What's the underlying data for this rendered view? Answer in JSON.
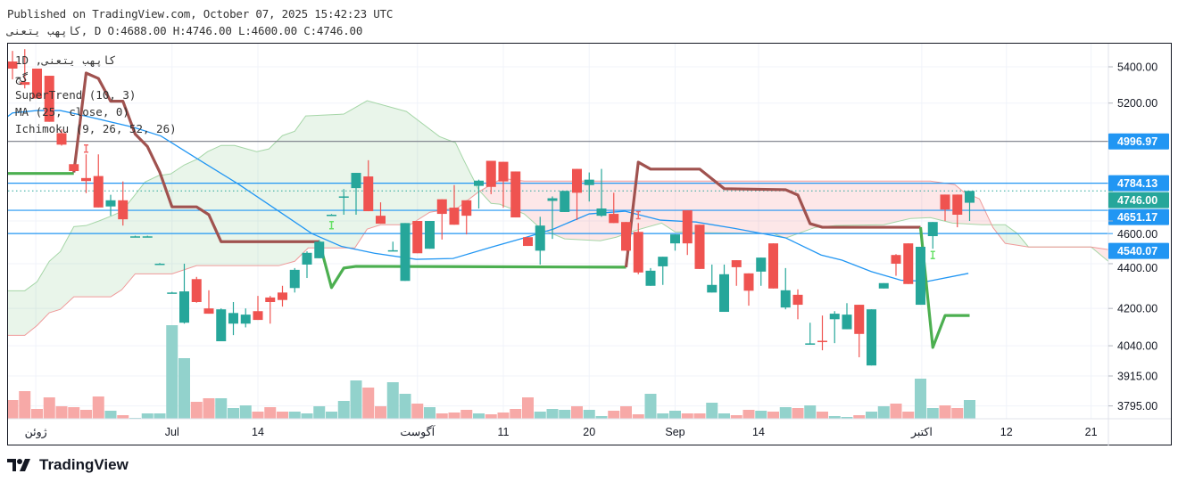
{
  "header": {
    "published": "Published on TradingView.com, October 07, 2025 15:42:23 UTC",
    "ohlc_line": "کاپهب یتعنی, D O:4688.00 H:4746.00 L:4600.00 C:4746.00"
  },
  "legend": {
    "symbol": "کاپهب یتعنی, 1D",
    "exchange": "گج",
    "supertrend": "SuperTrend (10, 3)",
    "ma": "MA (25, close, 0)",
    "ichimoku": "Ichimoku (9, 26, 52, 26)"
  },
  "footer": {
    "brand": "TradingView"
  },
  "colors": {
    "up": "#26a69a",
    "down": "#ef5350",
    "vol_up": "#92d2cc",
    "vol_down": "#f7a9a7",
    "ma": "#2196f3",
    "st_up": "#4caf50",
    "st_down": "#a0524f",
    "level": "#2196f3",
    "span_a": "#a5d6a7",
    "span_b": "#ef9a9a"
  },
  "chart_data": {
    "type": "candlestick",
    "title": "کاپهب یتعنی, 1D",
    "y_scale": "log",
    "ylim": [
      3760,
      5520
    ],
    "y_ticks": [
      {
        "v": 5400,
        "l": "5400.00"
      },
      {
        "v": 5200,
        "l": "5200.00"
      },
      {
        "v": 4600,
        "l": "4600.00"
      },
      {
        "v": 4400,
        "l": "4400.00"
      },
      {
        "v": 4200,
        "l": "4200.00"
      },
      {
        "v": 4040,
        "l": "4040.00"
      },
      {
        "v": 3915,
        "l": "3915.00"
      },
      {
        "v": 3795,
        "l": "3795.00"
      }
    ],
    "x_ticks": [
      {
        "i": 1.9,
        "l": "ژوئن"
      },
      {
        "i": 13.0,
        "l": "Jul"
      },
      {
        "i": 20.0,
        "l": "14"
      },
      {
        "i": 33.0,
        "l": "آگوست"
      },
      {
        "i": 40.0,
        "l": "11"
      },
      {
        "i": 47.0,
        "l": "20"
      },
      {
        "i": 54.0,
        "l": "Sep"
      },
      {
        "i": 60.8,
        "l": "14"
      },
      {
        "i": 74.1,
        "l": "اکتبر"
      },
      {
        "i": 81.0,
        "l": "12"
      },
      {
        "i": 87.9,
        "l": "21"
      }
    ],
    "levels": [
      {
        "price": 4996.97,
        "label": "4996.97",
        "color": "#787b86",
        "label_color": "#2196f3"
      },
      {
        "price": 4784.13,
        "label": "4784.13",
        "color": "#2196f3",
        "label_color": "#2196f3"
      },
      {
        "price": 4651.17,
        "label": "4651.17",
        "color": "#2196f3",
        "label_color": "#2196f3"
      },
      {
        "price": 4540.07,
        "label": "4540.07",
        "color": "#2196f3",
        "label_color": "#2196f3"
      }
    ],
    "last_price": {
      "price": 4746.0,
      "label": "4746.00",
      "color": "#26a69a"
    },
    "candles": [
      [
        5430,
        5490,
        5330,
        5390
      ],
      [
        5315,
        5500,
        5280,
        5300
      ],
      [
        5390,
        5390,
        5225,
        5225
      ],
      [
        5350,
        5350,
        5100,
        5100
      ],
      [
        5040,
        5060,
        4975,
        4980
      ],
      [
        4880,
        4880,
        4845,
        4845
      ],
      [
        4810,
        4930,
        4735,
        4795
      ],
      [
        4820,
        4930,
        4665,
        4665
      ],
      [
        4670,
        4727,
        4625,
        4700
      ],
      [
        4700,
        4793,
        4578,
        4608
      ],
      [
        4527,
        4530,
        4525,
        4527
      ],
      [
        4527,
        4530,
        4525,
        4527
      ],
      [
        4400,
        4403,
        4397,
        4400
      ],
      [
        4270,
        4273,
        4267,
        4270
      ],
      [
        4138,
        4400,
        4134,
        4275
      ],
      [
        4330,
        4340,
        4225,
        4228
      ],
      [
        4200,
        4280,
        4177,
        4177
      ],
      [
        4059,
        4200,
        4059,
        4196
      ],
      [
        4134,
        4228,
        4085,
        4180
      ],
      [
        4134,
        4200,
        4118,
        4173
      ],
      [
        4188,
        4255,
        4150,
        4150
      ],
      [
        4248,
        4255,
        4134,
        4228
      ],
      [
        4270,
        4300,
        4208,
        4237
      ],
      [
        4290,
        4380,
        4270,
        4372
      ],
      [
        4396,
        4457,
        4335,
        4450
      ],
      [
        4425,
        4510,
        4425,
        4502
      ],
      [
        4630,
        4633,
        4627,
        4630
      ],
      [
        4715,
        4755,
        4630,
        4719
      ],
      [
        4760,
        4836,
        4630,
        4836
      ],
      [
        4818,
        4900,
        4647,
        4647
      ],
      [
        4625,
        4690,
        4587,
        4587
      ],
      [
        4458,
        4502,
        4458,
        4462
      ],
      [
        4322,
        4590,
        4322,
        4590
      ],
      [
        4600,
        4600,
        4448,
        4448
      ],
      [
        4469,
        4600,
        4469,
        4600
      ],
      [
        4705,
        4705,
        4512,
        4634
      ],
      [
        4664,
        4775,
        4582,
        4582
      ],
      [
        4700,
        4700,
        4536,
        4625
      ],
      [
        4771,
        4802,
        4660,
        4797
      ],
      [
        4897,
        4897,
        4730,
        4766
      ],
      [
        4892,
        4892,
        4664,
        4793
      ],
      [
        4843,
        4843,
        4617,
        4617
      ],
      [
        4523,
        4523,
        4482,
        4482
      ],
      [
        4460,
        4620,
        4396,
        4578
      ],
      [
        4697,
        4719,
        4515,
        4710
      ],
      [
        4643,
        4746,
        4643,
        4746
      ],
      [
        4856,
        4856,
        4604,
        4737
      ],
      [
        4775,
        4838,
        4694,
        4802
      ],
      [
        4625,
        4856,
        4620,
        4660
      ],
      [
        4634,
        4737,
        4590,
        4590
      ],
      [
        4595,
        4595,
        4460,
        4460
      ],
      [
        4548,
        4590,
        4352,
        4360
      ],
      [
        4300,
        4380,
        4300,
        4368
      ],
      [
        4388,
        4432,
        4304,
        4432
      ],
      [
        4494,
        4536,
        4460,
        4536
      ],
      [
        4651,
        4651,
        4440,
        4494
      ],
      [
        4582,
        4582,
        4376,
        4376
      ],
      [
        4270,
        4396,
        4270,
        4304
      ],
      [
        4185,
        4396,
        4185,
        4352
      ],
      [
        4416,
        4416,
        4300,
        4384
      ],
      [
        4356,
        4356,
        4212,
        4278
      ],
      [
        4364,
        4428,
        4300,
        4428
      ],
      [
        4494,
        4494,
        4288,
        4288
      ],
      [
        4204,
        4380,
        4196,
        4280
      ],
      [
        4260,
        4284,
        4153,
        4216
      ],
      [
        4046,
        4138,
        4046,
        4050
      ],
      [
        4061,
        4169,
        4021,
        4057
      ],
      [
        4153,
        4188,
        4051,
        4177
      ],
      [
        4110,
        4223,
        4110,
        4173
      ],
      [
        4216,
        4216,
        3992,
        4090
      ],
      [
        3958,
        4196,
        3958,
        4196
      ],
      [
        4288,
        4312,
        4288,
        4312
      ],
      [
        4440,
        4444,
        4345,
        4400
      ],
      [
        4494,
        4494,
        4308,
        4308
      ],
      [
        4216,
        4478,
        4216,
        4478
      ],
      [
        4528,
        4595,
        4469,
        4595
      ],
      [
        4728,
        4728,
        4600,
        4655
      ],
      [
        4728,
        4728,
        4570,
        4630
      ],
      [
        4688,
        4746,
        4600,
        4746
      ]
    ],
    "volume_relative": [
      21,
      31,
      11,
      24,
      14,
      13,
      10,
      25,
      9,
      4,
      1,
      6,
      6,
      105,
      68,
      19,
      23,
      23,
      12,
      15,
      8,
      13,
      8,
      8,
      6,
      14,
      8,
      20,
      43,
      35,
      14,
      41,
      28,
      17,
      13,
      6,
      7,
      10,
      6,
      5,
      7,
      11,
      24,
      8,
      11,
      10,
      14,
      10,
      3,
      9,
      14,
      5,
      28,
      6,
      9,
      6,
      6,
      18,
      6,
      4,
      10,
      9,
      8,
      13,
      12,
      15,
      8,
      3,
      2,
      4,
      8,
      14,
      17,
      8,
      45,
      12,
      15,
      12,
      21
    ],
    "supertrend": [
      {
        "trend": "up",
        "points": [
          [
            -1,
            4833
          ],
          [
            5,
            4833
          ]
        ]
      },
      {
        "trend": "down",
        "points": [
          [
            5,
            4838
          ],
          [
            6,
            5365
          ],
          [
            7,
            5335
          ],
          [
            8,
            5210
          ],
          [
            9,
            5210
          ],
          [
            10,
            5035
          ],
          [
            11,
            4970
          ],
          [
            12,
            4840
          ],
          [
            13,
            4668
          ],
          [
            15,
            4668
          ],
          [
            16,
            4630
          ],
          [
            17,
            4502
          ],
          [
            25,
            4502
          ]
        ]
      },
      {
        "trend": "up",
        "points": [
          [
            25,
            4502
          ],
          [
            26,
            4292
          ],
          [
            27,
            4380
          ],
          [
            28,
            4388
          ],
          [
            50,
            4384
          ]
        ]
      },
      {
        "trend": "down",
        "points": [
          [
            50,
            4384
          ],
          [
            51,
            4890
          ],
          [
            52,
            4855
          ],
          [
            56,
            4855
          ],
          [
            58,
            4757
          ],
          [
            63,
            4752
          ],
          [
            64,
            4726
          ],
          [
            65,
            4587
          ],
          [
            66,
            4570
          ],
          [
            74,
            4570
          ]
        ]
      },
      {
        "trend": "up",
        "points": [
          [
            74,
            4570
          ],
          [
            75,
            4033
          ],
          [
            76,
            4169
          ],
          [
            78,
            4169
          ]
        ]
      }
    ],
    "ma25": [
      [
        -1,
        5099
      ],
      [
        0,
        5147
      ],
      [
        2,
        5160
      ],
      [
        3.9,
        5160
      ],
      [
        6,
        5130
      ],
      [
        9.9,
        5070
      ],
      [
        12.1,
        5025
      ],
      [
        15,
        4910
      ],
      [
        18.4,
        4780
      ],
      [
        21.7,
        4647
      ],
      [
        24.4,
        4540
      ],
      [
        26.8,
        4480
      ],
      [
        29.5,
        4448
      ],
      [
        32.9,
        4420
      ],
      [
        35.9,
        4424
      ],
      [
        39,
        4476
      ],
      [
        41.7,
        4520
      ],
      [
        44.1,
        4562
      ],
      [
        47,
        4634
      ],
      [
        49.9,
        4647
      ],
      [
        52.8,
        4604
      ],
      [
        55.7,
        4595
      ],
      [
        58.8,
        4565
      ],
      [
        63,
        4520
      ],
      [
        65.9,
        4440
      ],
      [
        67.6,
        4416
      ],
      [
        70,
        4364
      ],
      [
        72.4,
        4325
      ],
      [
        74.6,
        4320
      ],
      [
        77.9,
        4356
      ]
    ],
    "ichimoku_span_a": [
      [
        -0.5,
        4278
      ],
      [
        1,
        4278
      ],
      [
        2,
        4318
      ],
      [
        3,
        4411
      ],
      [
        3.9,
        4456
      ],
      [
        5,
        4573
      ],
      [
        6,
        4578
      ],
      [
        7,
        4599
      ],
      [
        8.1,
        4625
      ],
      [
        8.9,
        4646
      ],
      [
        9.9,
        4720
      ],
      [
        10.8,
        4790
      ],
      [
        11.9,
        4822
      ],
      [
        12.9,
        4831
      ],
      [
        14,
        4876
      ],
      [
        15.1,
        4907
      ],
      [
        15.9,
        4944
      ],
      [
        17,
        4976
      ],
      [
        18.1,
        4976
      ],
      [
        19.9,
        4944
      ],
      [
        20.9,
        4958
      ],
      [
        22,
        5027
      ],
      [
        23,
        5050
      ],
      [
        23.9,
        5131
      ],
      [
        27,
        5141
      ],
      [
        28.9,
        5213
      ],
      [
        32.1,
        5155
      ],
      [
        34.8,
        5022
      ],
      [
        36.1,
        4990
      ],
      [
        36.8,
        4898
      ],
      [
        38,
        4751
      ],
      [
        39,
        4685
      ],
      [
        39.7,
        4681
      ],
      [
        41.7,
        4634
      ],
      [
        43.1,
        4561
      ],
      [
        45,
        4515
      ],
      [
        47.9,
        4506
      ],
      [
        49.2,
        4523
      ],
      [
        50.6,
        4552
      ],
      [
        52.9,
        4590
      ],
      [
        54,
        4548
      ],
      [
        56.7,
        4544
      ],
      [
        62,
        4540
      ],
      [
        63,
        4519
      ],
      [
        65.4,
        4569
      ],
      [
        67.1,
        4578
      ],
      [
        71,
        4582
      ],
      [
        73.2,
        4612
      ],
      [
        74.8,
        4616
      ],
      [
        76.6,
        4590
      ],
      [
        79,
        4582
      ],
      [
        80.9,
        4582
      ],
      [
        81.9,
        4540
      ],
      [
        82.8,
        4477
      ],
      [
        87.9,
        4477
      ],
      [
        89.3,
        4411
      ]
    ],
    "ichimoku_span_b": [
      [
        -0.5,
        4084
      ],
      [
        1,
        4084
      ],
      [
        2,
        4126
      ],
      [
        3,
        4181
      ],
      [
        3.9,
        4196
      ],
      [
        5,
        4251
      ],
      [
        8,
        4251
      ],
      [
        8.9,
        4282
      ],
      [
        10,
        4354
      ],
      [
        13,
        4354
      ],
      [
        15,
        4391
      ],
      [
        21.7,
        4391
      ],
      [
        23,
        4411
      ],
      [
        24.1,
        4473
      ],
      [
        27.9,
        4473
      ],
      [
        28.9,
        4561
      ],
      [
        30,
        4582
      ],
      [
        32.4,
        4582
      ],
      [
        34,
        4642
      ],
      [
        36.3,
        4664
      ],
      [
        38,
        4742
      ],
      [
        39.9,
        4808
      ],
      [
        41.7,
        4795
      ],
      [
        74.8,
        4795
      ],
      [
        76.8,
        4777
      ],
      [
        77.5,
        4742
      ],
      [
        78.8,
        4707
      ],
      [
        79.9,
        4569
      ],
      [
        80.9,
        4494
      ],
      [
        82.8,
        4477
      ],
      [
        87.9,
        4477
      ],
      [
        89.3,
        4465
      ]
    ],
    "signal_markers": [
      {
        "i": 6,
        "price": 4960,
        "type": "sell"
      },
      {
        "i": 51,
        "price": 4628,
        "type": "sell"
      },
      {
        "i": 26,
        "price": 4580,
        "type": "buy"
      },
      {
        "i": 75,
        "price": 4440,
        "type": "buy"
      }
    ]
  }
}
